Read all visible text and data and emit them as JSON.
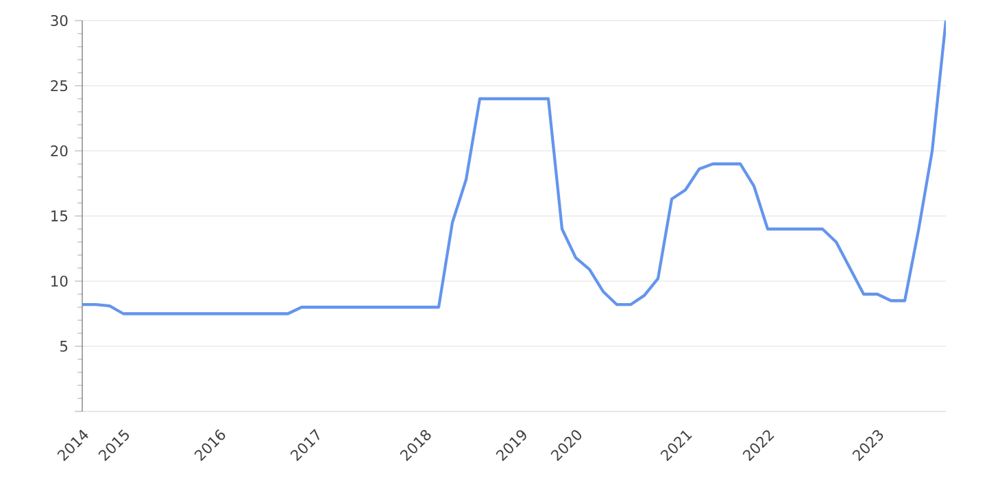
{
  "chart_data": {
    "type": "line",
    "categories": [
      "2014",
      null,
      null,
      "2015",
      null,
      null,
      null,
      null,
      null,
      null,
      "2016",
      null,
      null,
      null,
      null,
      null,
      null,
      "2017",
      null,
      null,
      null,
      null,
      null,
      null,
      null,
      "2018",
      null,
      null,
      null,
      null,
      null,
      null,
      "2019",
      null,
      null,
      null,
      "2020",
      null,
      null,
      null,
      null,
      null,
      null,
      null,
      "2021",
      null,
      null,
      null,
      null,
      null,
      "2022",
      null,
      null,
      null,
      null,
      null,
      null,
      null,
      "2023",
      null,
      null,
      null,
      null,
      null
    ],
    "series": [
      {
        "color": "#6495ed",
        "values": [
          8.2,
          8.2,
          8.1,
          7.5,
          7.5,
          7.5,
          7.5,
          7.5,
          7.5,
          7.5,
          7.5,
          7.5,
          7.5,
          7.5,
          7.5,
          7.5,
          8,
          8,
          8,
          8,
          8,
          8,
          8,
          8,
          8,
          8,
          8,
          14.5,
          17.8,
          24,
          24,
          24,
          24,
          24,
          24,
          14,
          11.8,
          10.9,
          9.2,
          8.2,
          8.2,
          8.9,
          10.2,
          16.3,
          17,
          18.6,
          19,
          19,
          19,
          17.3,
          14,
          14,
          14,
          14,
          14,
          13,
          11,
          9,
          9,
          8.5,
          8.5,
          13.9,
          20,
          30
        ]
      }
    ],
    "ylim": [
      0,
      30
    ],
    "yticks": [
      {
        "value": 0,
        "label": null
      },
      5,
      10,
      15,
      20,
      25,
      30
    ],
    "grid": "y",
    "marker": "none",
    "line_style": "solid"
  }
}
